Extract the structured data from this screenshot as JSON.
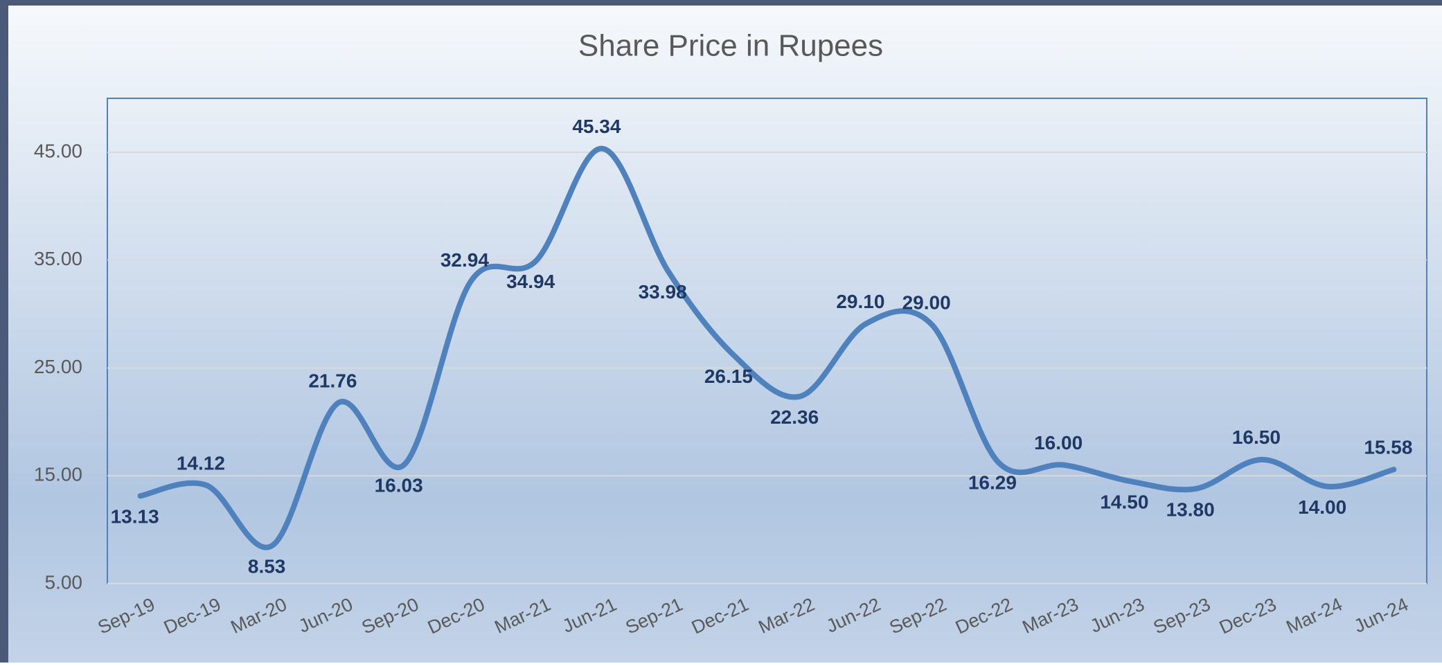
{
  "chart_data": {
    "type": "line",
    "title": "Share Price in Rupees",
    "categories": [
      "Sep-19",
      "Dec-19",
      "Mar-20",
      "Jun-20",
      "Sep-20",
      "Dec-20",
      "Mar-21",
      "Jun-21",
      "Sep-21",
      "Dec-21",
      "Mar-22",
      "Jun-22",
      "Sep-22",
      "Dec-22",
      "Mar-23",
      "Jun-23",
      "Sep-23",
      "Dec-23",
      "Mar-24",
      "Jun-24"
    ],
    "series": [
      {
        "name": "Share Price",
        "color": "#4f81bd",
        "values": [
          13.13,
          14.12,
          8.53,
          21.76,
          16.03,
          32.94,
          34.94,
          45.34,
          33.98,
          26.15,
          22.36,
          29.1,
          29.0,
          16.29,
          16.0,
          14.5,
          13.8,
          16.5,
          14.0,
          15.58
        ],
        "value_labels": [
          "13.13",
          "14.12",
          "8.53",
          "21.76",
          "16.03",
          "32.94",
          "34.94",
          "45.34",
          "33.98",
          "26.15",
          "22.36",
          "29.10",
          "29.00",
          "16.29",
          "16.00",
          "14.50",
          "13.80",
          "16.50",
          "14.00",
          "15.58"
        ]
      }
    ],
    "ylim": [
      5,
      50
    ],
    "yticks": [
      {
        "value": 5,
        "label": "5.00"
      },
      {
        "value": 15,
        "label": "15.00"
      },
      {
        "value": 25,
        "label": "25.00"
      },
      {
        "value": 35,
        "label": "35.00"
      },
      {
        "value": 45,
        "label": "45.00"
      }
    ],
    "grid": true
  }
}
